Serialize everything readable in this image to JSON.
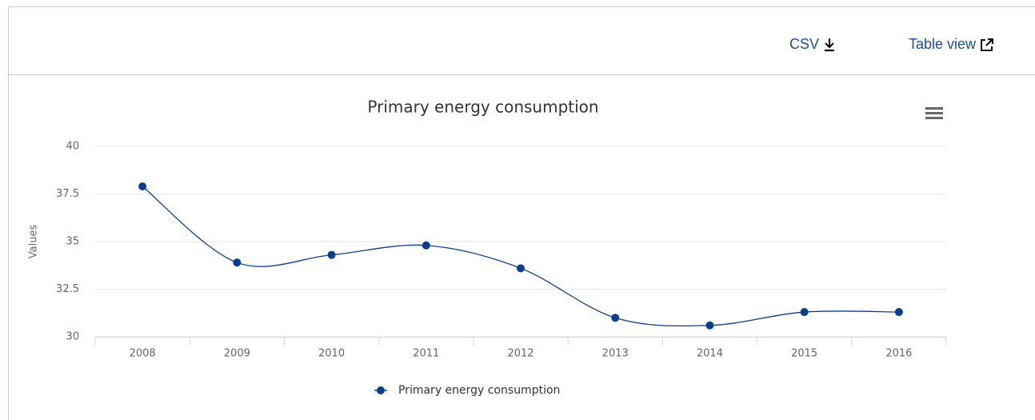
{
  "toolbar": {
    "csv": "CSV",
    "table_view": "Table view"
  },
  "chart_data": {
    "type": "line",
    "title": "Primary energy consumption",
    "y_label": "Values",
    "categories": [
      "2008",
      "2009",
      "2010",
      "2011",
      "2012",
      "2013",
      "2014",
      "2015",
      "2016"
    ],
    "series": [
      {
        "name": "Primary energy consumption",
        "color": "#0b3f8c",
        "values": [
          37.9,
          33.9,
          34.3,
          34.8,
          33.6,
          31.0,
          30.6,
          31.3,
          31.3
        ]
      }
    ],
    "ylim": [
      30,
      40
    ],
    "yticks": [
      30,
      32.5,
      35,
      37.5,
      40
    ],
    "grid": true,
    "legend": "bottom"
  }
}
